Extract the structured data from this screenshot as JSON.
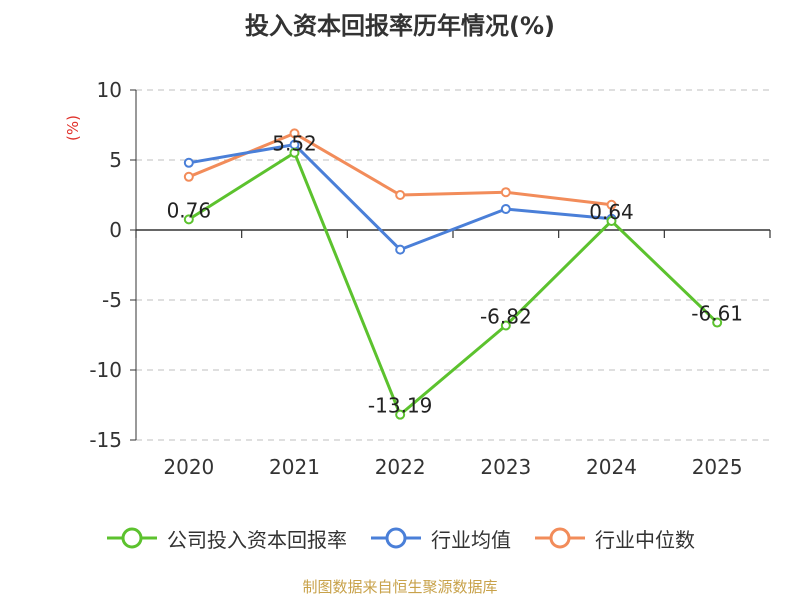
{
  "title": "投入资本回报率历年情况(%)",
  "unit_label": "(%)",
  "source_note": "制图数据来自恒生聚源数据库",
  "chart_data": {
    "type": "line",
    "categories": [
      "2020",
      "2021",
      "2022",
      "2023",
      "2024",
      "2025"
    ],
    "ylim": [
      -15,
      10
    ],
    "yticks": [
      10,
      5,
      0,
      -5,
      -10,
      -15
    ],
    "grid": true,
    "legend_position": "bottom",
    "series": [
      {
        "name": "公司投入资本回报率",
        "color": "#5cc22e",
        "values": [
          0.76,
          5.52,
          -13.19,
          -6.82,
          0.64,
          -6.61
        ],
        "labels": [
          "0.76",
          "5.52",
          "-13.19",
          "-6.82",
          "0.64",
          "-6.61"
        ]
      },
      {
        "name": "行业均值",
        "color": "#4a7fd8",
        "values": [
          4.8,
          6.1,
          -1.4,
          1.5,
          0.8,
          null
        ]
      },
      {
        "name": "行业中位数",
        "color": "#f28c5a",
        "values": [
          3.8,
          6.9,
          2.5,
          2.7,
          1.8,
          null
        ]
      }
    ]
  }
}
